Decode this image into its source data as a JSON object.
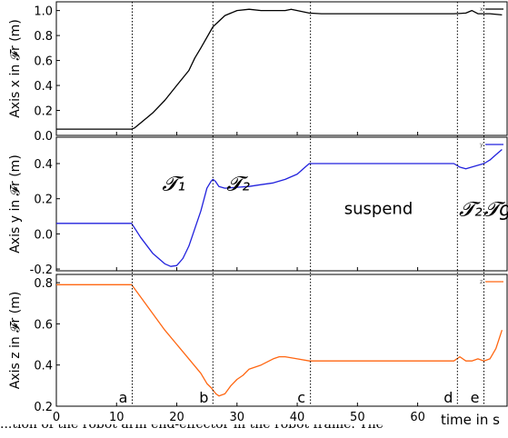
{
  "chart_data": {
    "type": "line",
    "xlabel": "time in s",
    "xlim": [
      0,
      75
    ],
    "x_ticks": [
      "0",
      "10",
      "20",
      "30",
      "40",
      "50",
      "60"
    ],
    "x_tick_values": [
      0,
      10,
      20,
      30,
      40,
      50,
      60
    ],
    "grid": false,
    "legend_placement": "top-right",
    "events": [
      {
        "label": "a",
        "x": 12.6
      },
      {
        "label": "b",
        "x": 26.0
      },
      {
        "label": "c",
        "x": 42.2
      },
      {
        "label": "d",
        "x": 66.6
      },
      {
        "label": "e",
        "x": 71.0
      }
    ],
    "phase_labels": [
      {
        "text": "𝓣₁",
        "x": 19.5,
        "y": 0.3
      },
      {
        "text": "𝓣₂",
        "x": 30.2,
        "y": 0.3
      },
      {
        "text": "suspend",
        "x": 53.5,
        "y": 0.155
      },
      {
        "text": "𝓣₂",
        "x": 68.8,
        "y": 0.155
      },
      {
        "text": "𝓣g",
        "x": 73.3,
        "y": 0.155
      }
    ],
    "panels": [
      {
        "ylabel": "Axis x in 𝓕r (m)",
        "ylim": [
          0,
          1.07
        ],
        "y_ticks": [
          "0.0",
          "0.2",
          "0.4",
          "0.6",
          "0.8",
          "1.0"
        ],
        "y_tick_values": [
          0.0,
          0.2,
          0.4,
          0.6,
          0.8,
          1.0
        ],
        "series": [
          {
            "name": "x",
            "color": "#000000",
            "x": [
              0,
              12.5,
              13,
              14,
              16,
              18,
              20,
              22,
              23,
              24,
              26,
              28,
              30,
              32,
              34,
              36,
              38,
              39,
              40,
              42,
              44,
              50,
              60,
              66,
              68,
              69,
              70,
              72,
              74
            ],
            "y": [
              0.05,
              0.05,
              0.06,
              0.1,
              0.18,
              0.28,
              0.4,
              0.52,
              0.62,
              0.7,
              0.87,
              0.96,
              1.0,
              1.01,
              1.0,
              1.0,
              1.0,
              1.01,
              1.0,
              0.98,
              0.975,
              0.975,
              0.975,
              0.975,
              0.98,
              1.0,
              0.975,
              0.975,
              0.965
            ]
          }
        ]
      },
      {
        "ylabel": "Axis y in 𝓕r (m)",
        "ylim": [
          -0.21,
          0.55
        ],
        "y_ticks": [
          "-0.2",
          "0.0",
          "0.2",
          "0.4"
        ],
        "y_tick_values": [
          -0.2,
          0.0,
          0.2,
          0.4
        ],
        "series": [
          {
            "name": "y",
            "color": "#2222dd",
            "x": [
              0,
              12.5,
              14,
              16,
              18,
              19,
              20,
              21,
              22,
              23,
              24,
              25,
              25.7,
              26,
              26.4,
              27,
              28,
              30,
              32,
              34,
              36,
              38,
              40,
              41,
              42,
              44,
              50,
              60,
              66,
              67,
              68,
              70,
              71,
              72,
              73,
              74
            ],
            "y": [
              0.06,
              0.06,
              -0.02,
              -0.11,
              -0.17,
              -0.185,
              -0.18,
              -0.14,
              -0.07,
              0.03,
              0.13,
              0.26,
              0.3,
              0.31,
              0.3,
              0.27,
              0.26,
              0.265,
              0.27,
              0.28,
              0.29,
              0.31,
              0.34,
              0.37,
              0.4,
              0.4,
              0.4,
              0.4,
              0.4,
              0.38,
              0.37,
              0.39,
              0.4,
              0.42,
              0.45,
              0.48
            ]
          }
        ]
      },
      {
        "ylabel": "Axis z in 𝓕r (m)",
        "ylim": [
          0.2,
          0.84
        ],
        "y_ticks": [
          "0.2",
          "0.4",
          "0.6",
          "0.8"
        ],
        "y_tick_values": [
          0.2,
          0.4,
          0.6,
          0.8
        ],
        "series": [
          {
            "name": "z",
            "color": "#ff6611",
            "x": [
              0,
              12.5,
              14,
              16,
              18,
              20,
              22,
              24,
              25,
              25.7,
              26.5,
              27,
              28,
              29,
              30,
              31,
              32,
              33,
              34,
              36,
              37,
              38,
              40,
              42,
              44,
              50,
              60,
              66,
              67,
              68,
              69,
              70,
              71,
              72,
              73,
              74
            ],
            "y": [
              0.79,
              0.79,
              0.73,
              0.65,
              0.57,
              0.5,
              0.43,
              0.36,
              0.31,
              0.29,
              0.26,
              0.25,
              0.26,
              0.3,
              0.33,
              0.35,
              0.38,
              0.39,
              0.4,
              0.43,
              0.44,
              0.44,
              0.43,
              0.42,
              0.42,
              0.42,
              0.42,
              0.42,
              0.44,
              0.42,
              0.42,
              0.43,
              0.42,
              0.43,
              0.48,
              0.57
            ]
          }
        ]
      }
    ]
  },
  "caption": "...tion of the robot arm end-effector in the robot frame. The"
}
